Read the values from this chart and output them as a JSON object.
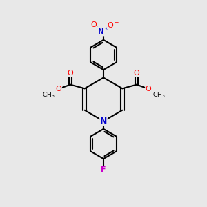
{
  "bg_color": "#e8e8e8",
  "bond_color": "#000000",
  "line_width": 1.5,
  "atom_colors": {
    "O": "#ff0000",
    "N_nitro": "#0000cd",
    "N_ring": "#0000cd",
    "F": "#cc00cc",
    "C": "#000000"
  },
  "font_size": 8,
  "fig_size": [
    3.0,
    3.0
  ],
  "dpi": 100
}
